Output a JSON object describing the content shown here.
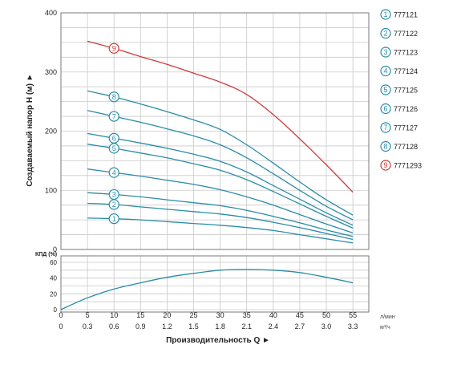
{
  "chart_data": [
    {
      "type": "line",
      "ylabel": "Создаваемый напор H (м) ►",
      "ylim": [
        0,
        400
      ],
      "yticks": [
        "0",
        "100",
        "200",
        "300",
        "400"
      ],
      "xlim": [
        0,
        58
      ],
      "grid": true,
      "legend_position": "right",
      "series": [
        {
          "name": "777121",
          "marker": "1",
          "color": "#2a8ca6",
          "x": [
            5,
            10,
            15,
            20,
            25,
            30,
            35,
            40,
            45,
            50,
            55
          ],
          "y": [
            53,
            52,
            50,
            47,
            44,
            41,
            37,
            32,
            25,
            18,
            11
          ]
        },
        {
          "name": "777122",
          "marker": "2",
          "color": "#2a8ca6",
          "x": [
            5,
            10,
            15,
            20,
            25,
            30,
            35,
            40,
            45,
            50,
            55
          ],
          "y": [
            78,
            76,
            72,
            68,
            64,
            60,
            54,
            46,
            37,
            27,
            17
          ]
        },
        {
          "name": "777123",
          "marker": "3",
          "color": "#2a8ca6",
          "x": [
            5,
            10,
            15,
            20,
            25,
            30,
            35,
            40,
            45,
            50,
            55
          ],
          "y": [
            96,
            93,
            89,
            84,
            79,
            74,
            66,
            56,
            45,
            33,
            22
          ]
        },
        {
          "name": "777124",
          "marker": "4",
          "color": "#2a8ca6",
          "x": [
            5,
            10,
            15,
            20,
            25,
            30,
            35,
            40,
            45,
            50,
            55
          ],
          "y": [
            136,
            130,
            124,
            117,
            110,
            101,
            89,
            75,
            59,
            43,
            28
          ]
        },
        {
          "name": "777125",
          "marker": "5",
          "color": "#2a8ca6",
          "x": [
            5,
            10,
            15,
            20,
            25,
            30,
            35,
            40,
            45,
            50,
            55
          ],
          "y": [
            178,
            171,
            163,
            155,
            145,
            134,
            118,
            98,
            77,
            56,
            36
          ]
        },
        {
          "name": "777126",
          "marker": "6",
          "color": "#2a8ca6",
          "x": [
            5,
            10,
            15,
            20,
            25,
            30,
            35,
            40,
            45,
            50,
            55
          ],
          "y": [
            196,
            188,
            180,
            171,
            161,
            149,
            131,
            108,
            85,
            62,
            41
          ]
        },
        {
          "name": "777127",
          "marker": "7",
          "color": "#2a8ca6",
          "x": [
            5,
            10,
            15,
            20,
            25,
            30,
            35,
            40,
            45,
            50,
            55
          ],
          "y": [
            235,
            225,
            215,
            204,
            192,
            177,
            155,
            128,
            100,
            73,
            50
          ]
        },
        {
          "name": "777128",
          "marker": "8",
          "color": "#2a8ca6",
          "x": [
            5,
            10,
            15,
            20,
            25,
            30,
            35,
            40,
            45,
            50,
            55
          ],
          "y": [
            268,
            258,
            246,
            233,
            219,
            203,
            177,
            146,
            114,
            84,
            58
          ]
        },
        {
          "name": "7771293",
          "marker": "9",
          "color": "#d03a3a",
          "x": [
            5,
            10,
            15,
            20,
            25,
            30,
            35,
            40,
            45,
            50,
            55
          ],
          "y": [
            352,
            340,
            326,
            313,
            298,
            283,
            262,
            228,
            187,
            143,
            97
          ]
        }
      ]
    },
    {
      "type": "line",
      "ylabel": "КПД (%)",
      "ylim": [
        0,
        60
      ],
      "yticks": [
        "0",
        "20",
        "40",
        "60"
      ],
      "xlim": [
        0,
        58
      ],
      "grid": true,
      "series": [
        {
          "color": "#2a8ca6",
          "x": [
            0,
            5,
            10,
            15,
            20,
            25,
            30,
            35,
            40,
            45,
            50,
            55
          ],
          "y": [
            0,
            15,
            26,
            34,
            41,
            46,
            50,
            51,
            50,
            47,
            41,
            34
          ]
        }
      ]
    }
  ],
  "axis": {
    "q_ticks": [
      "0",
      "5",
      "10",
      "15",
      "20",
      "25",
      "30",
      "35",
      "40",
      "45",
      "50",
      "55"
    ],
    "m3_ticks": [
      "0",
      "0.3",
      "0.6",
      "0.9",
      "1.2",
      "1.5",
      "1.8",
      "2.1",
      "2.4",
      "2.7",
      "3.0",
      "3.3"
    ],
    "q_unit": "л/мин",
    "m3_unit": "м³/ч",
    "xlabel": "Производительность Q ►"
  }
}
